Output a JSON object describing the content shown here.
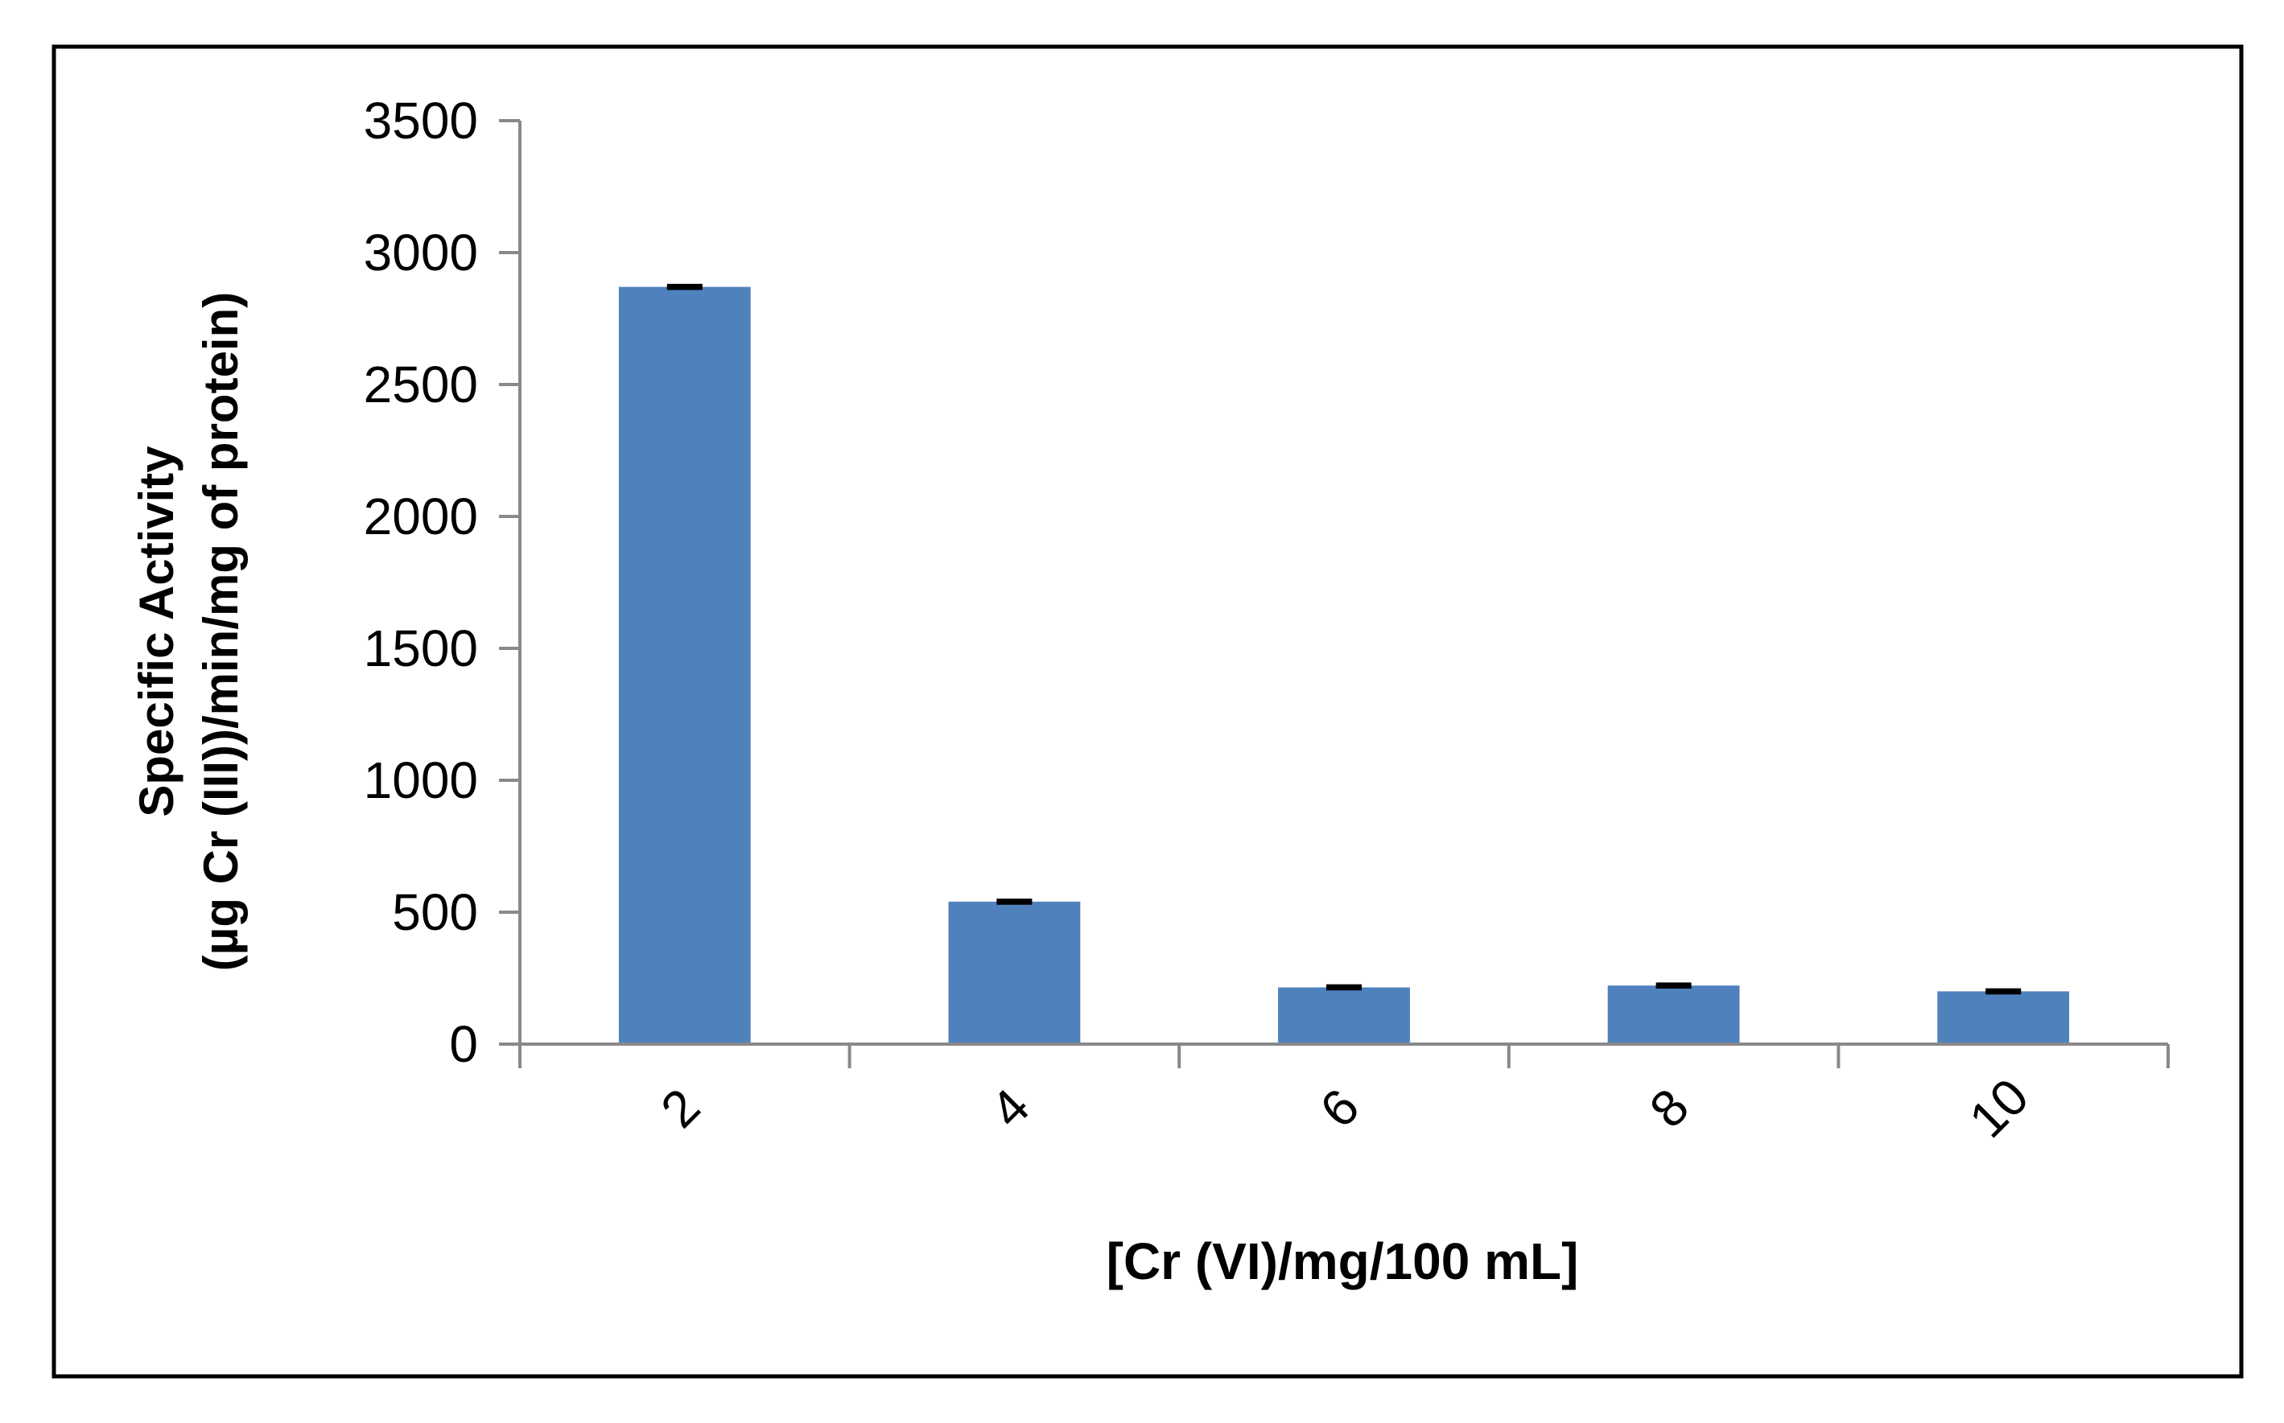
{
  "chart_data": {
    "type": "bar",
    "title": "",
    "categories": [
      "2",
      "4",
      "6",
      "8",
      "10"
    ],
    "values": [
      2870,
      540,
      215,
      222,
      200
    ],
    "error_bars": [
      4,
      4,
      4,
      4,
      4
    ],
    "xlabel": "[Cr (VI)/mg/100 mL]",
    "ylabel_line1": "Specific Activity",
    "ylabel_line2": "(µg Cr (III))/min/mg of protein)",
    "ylim": [
      0,
      3500
    ],
    "yticks": [
      "0",
      "500",
      "1000",
      "1500",
      "2000",
      "2500",
      "3000",
      "3500"
    ],
    "grid": false,
    "legend": "none",
    "bar_color": "#4F81BD",
    "frame_color": "#000000",
    "axis_color": "#898989"
  }
}
